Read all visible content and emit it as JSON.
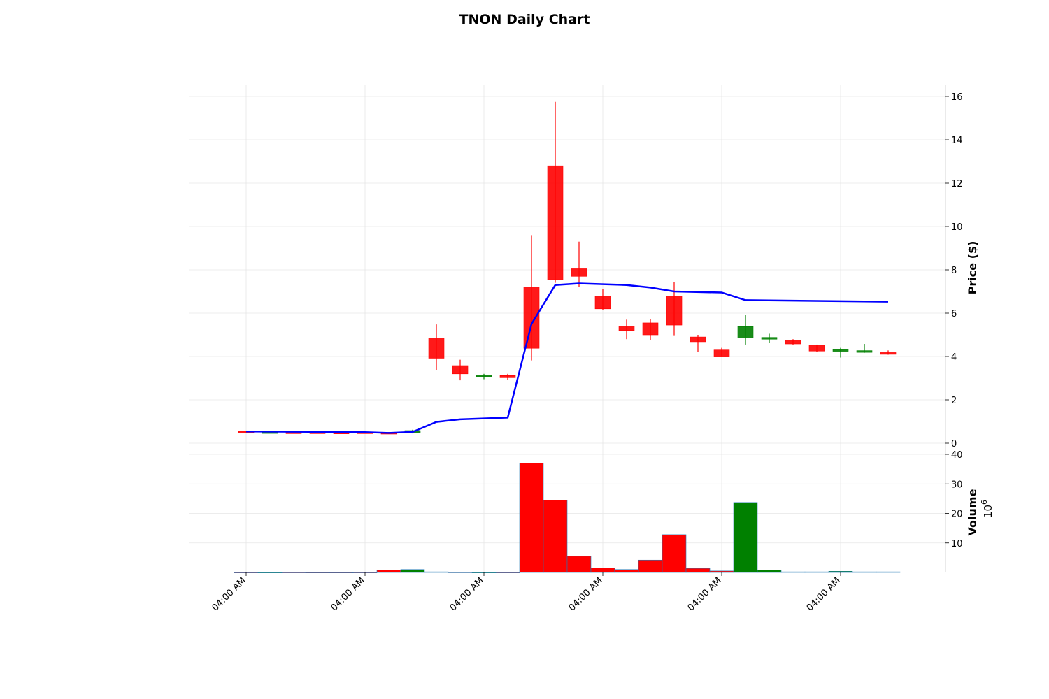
{
  "chart_data": {
    "type": "candlestick",
    "title": "TNON Daily Chart",
    "price_axis": {
      "label": "Price ($)",
      "range": [
        -0.6,
        16.5
      ],
      "ticks": [
        0,
        2,
        4,
        6,
        8,
        10,
        12,
        14,
        16
      ],
      "side": "right"
    },
    "volume_axis": {
      "label": "Volume",
      "scale_label": "10^6",
      "range": [
        0,
        40
      ],
      "ticks": [
        10,
        20,
        30,
        40
      ],
      "side": "right"
    },
    "x_axis": {
      "tick_labels": [
        "04:00 AM",
        "04:00 AM",
        "04:00 AM",
        "04:00 AM",
        "04:00 AM",
        "04:00 AM"
      ],
      "tick_indices": [
        0,
        5,
        10,
        15,
        20,
        25
      ],
      "rotation": -45
    },
    "grid": true,
    "colors": {
      "up": "#008000",
      "down": "#ff0000",
      "moving_average": "#0000ff",
      "grid": "#e6e6e6"
    },
    "candles": [
      {
        "open": 0.55,
        "high": 0.56,
        "low": 0.53,
        "close": 0.54,
        "volume": 0.05
      },
      {
        "open": 0.53,
        "high": 0.55,
        "low": 0.52,
        "close": 0.53,
        "volume": 0.05
      },
      {
        "open": 0.52,
        "high": 0.54,
        "low": 0.47,
        "close": 0.48,
        "volume": 0.06
      },
      {
        "open": 0.52,
        "high": 0.53,
        "low": 0.5,
        "close": 0.51,
        "volume": 0.04
      },
      {
        "open": 0.51,
        "high": 0.52,
        "low": 0.49,
        "close": 0.5,
        "volume": 0.04
      },
      {
        "open": 0.52,
        "high": 0.53,
        "low": 0.46,
        "close": 0.47,
        "volume": 0.05
      },
      {
        "open": 0.5,
        "high": 0.51,
        "low": 0.42,
        "close": 0.44,
        "volume": 0.8
      },
      {
        "open": 0.47,
        "high": 0.62,
        "low": 0.45,
        "close": 0.58,
        "volume": 1.0
      },
      {
        "open": 4.85,
        "high": 5.48,
        "low": 3.38,
        "close": 3.92,
        "volume": 0.2
      },
      {
        "open": 3.58,
        "high": 3.85,
        "low": 2.9,
        "close": 3.2,
        "volume": 0.1
      },
      {
        "open": 3.12,
        "high": 3.2,
        "low": 2.95,
        "close": 3.15,
        "volume": 0.05
      },
      {
        "open": 3.12,
        "high": 3.2,
        "low": 2.92,
        "close": 3.02,
        "volume": 0.05
      },
      {
        "open": 7.2,
        "high": 9.6,
        "low": 3.82,
        "close": 4.38,
        "volume": 37.0
      },
      {
        "open": 12.8,
        "high": 15.75,
        "low": 7.4,
        "close": 7.55,
        "volume": 24.5
      },
      {
        "open": 8.05,
        "high": 9.3,
        "low": 7.2,
        "close": 7.7,
        "volume": 5.5
      },
      {
        "open": 6.78,
        "high": 7.1,
        "low": 6.15,
        "close": 6.2,
        "volume": 1.5
      },
      {
        "open": 5.4,
        "high": 5.7,
        "low": 4.8,
        "close": 5.2,
        "volume": 1.0
      },
      {
        "open": 5.55,
        "high": 5.72,
        "low": 4.75,
        "close": 5.0,
        "volume": 4.2
      },
      {
        "open": 6.78,
        "high": 7.45,
        "low": 4.98,
        "close": 5.45,
        "volume": 12.8
      },
      {
        "open": 4.9,
        "high": 5.0,
        "low": 4.2,
        "close": 4.68,
        "volume": 1.4
      },
      {
        "open": 4.3,
        "high": 4.4,
        "low": 3.98,
        "close": 3.98,
        "volume": 0.5
      },
      {
        "open": 4.85,
        "high": 5.92,
        "low": 4.55,
        "close": 5.38,
        "volume": 23.7
      },
      {
        "open": 4.8,
        "high": 5.05,
        "low": 4.62,
        "close": 4.88,
        "volume": 0.8
      },
      {
        "open": 4.75,
        "high": 4.8,
        "low": 4.55,
        "close": 4.58,
        "volume": 0.2
      },
      {
        "open": 4.52,
        "high": 4.55,
        "low": 4.22,
        "close": 4.25,
        "volume": 0.2
      },
      {
        "open": 4.28,
        "high": 4.4,
        "low": 3.95,
        "close": 4.32,
        "volume": 0.4
      },
      {
        "open": 4.22,
        "high": 4.58,
        "low": 4.17,
        "close": 4.27,
        "volume": 0.2
      },
      {
        "open": 4.18,
        "high": 4.28,
        "low": 4.08,
        "close": 4.1,
        "volume": 0.2
      }
    ],
    "moving_average": {
      "points": [
        {
          "index": 0,
          "value": 0.54
        },
        {
          "index": 2,
          "value": 0.53
        },
        {
          "index": 5,
          "value": 0.51
        },
        {
          "index": 6,
          "value": 0.47
        },
        {
          "index": 7,
          "value": 0.52
        },
        {
          "index": 8,
          "value": 0.98
        },
        {
          "index": 9,
          "value": 1.1
        },
        {
          "index": 11,
          "value": 1.18
        },
        {
          "index": 12,
          "value": 5.5
        },
        {
          "index": 13,
          "value": 7.3
        },
        {
          "index": 14,
          "value": 7.37
        },
        {
          "index": 16,
          "value": 7.3
        },
        {
          "index": 17,
          "value": 7.18
        },
        {
          "index": 18,
          "value": 7.0
        },
        {
          "index": 20,
          "value": 6.95
        },
        {
          "index": 21,
          "value": 6.6
        },
        {
          "index": 27,
          "value": 6.53
        }
      ]
    }
  }
}
